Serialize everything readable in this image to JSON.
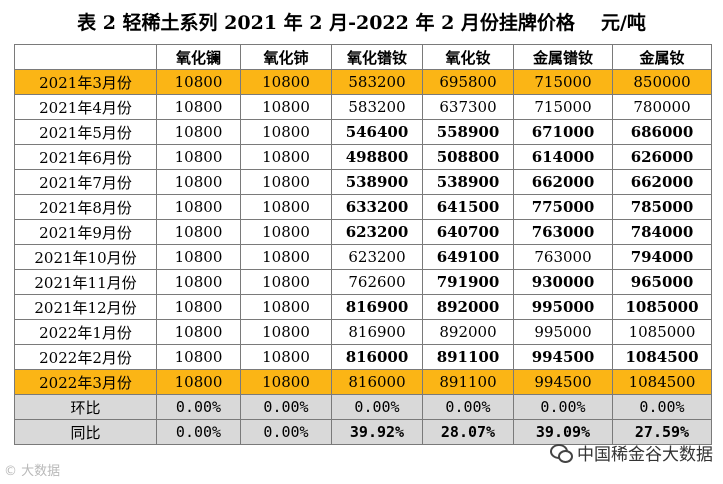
{
  "title": "表 2  轻稀土系列 2021 年 2 月-2022 年 2 月份挂牌价格",
  "unit": "元/吨",
  "headers": [
    "",
    "氧化镧",
    "氧化铈",
    "氧化镨钕",
    "氧化钕",
    "金属镨钕",
    "金属钕"
  ],
  "rows": [
    {
      "label": "2021年3月份",
      "values": [
        "10800",
        "10800",
        "583200",
        "695800",
        "715000",
        "850000"
      ]
    },
    {
      "label": "2021年4月份",
      "values": [
        "10800",
        "10800",
        "583200",
        "637300",
        "715000",
        "780000"
      ]
    },
    {
      "label": "2021年5月份",
      "values": [
        "10800",
        "10800",
        "546400",
        "558900",
        "671000",
        "686000"
      ]
    },
    {
      "label": "2021年6月份",
      "values": [
        "10800",
        "10800",
        "498800",
        "508800",
        "614000",
        "626000"
      ]
    },
    {
      "label": "2021年7月份",
      "values": [
        "10800",
        "10800",
        "538900",
        "538900",
        "662000",
        "662000"
      ]
    },
    {
      "label": "2021年8月份",
      "values": [
        "10800",
        "10800",
        "633200",
        "641500",
        "775000",
        "785000"
      ]
    },
    {
      "label": "2021年9月份",
      "values": [
        "10800",
        "10800",
        "623200",
        "640700",
        "763000",
        "784000"
      ]
    },
    {
      "label": "2021年10月份",
      "values": [
        "10800",
        "10800",
        "623200",
        "649100",
        "763000",
        "794000"
      ]
    },
    {
      "label": "2021年11月份",
      "values": [
        "10800",
        "10800",
        "762600",
        "791900",
        "930000",
        "965000"
      ]
    },
    {
      "label": "2021年12月份",
      "values": [
        "10800",
        "10800",
        "816900",
        "892000",
        "995000",
        "1085000"
      ]
    },
    {
      "label": "2022年1月份",
      "values": [
        "10800",
        "10800",
        "816900",
        "892000",
        "995000",
        "1085000"
      ]
    },
    {
      "label": "2022年2月份",
      "values": [
        "10800",
        "10800",
        "816000",
        "891100",
        "994500",
        "1084500"
      ]
    },
    {
      "label": "2022年3月份",
      "values": [
        "10800",
        "10800",
        "816000",
        "891100",
        "994500",
        "1084500"
      ]
    }
  ],
  "mom": {
    "label": "环比",
    "values": [
      "0.00%",
      "0.00%",
      "0.00%",
      "0.00%",
      "0.00%",
      "0.00%"
    ]
  },
  "yoy": {
    "label": "同比",
    "values": [
      "0.00%",
      "0.00%",
      "39.92%",
      "28.07%",
      "39.09%",
      "27.59%"
    ]
  },
  "watermark_left": "© 大数据",
  "watermark_right": "中国稀金谷大数据",
  "colors": {
    "highlight": "#fbb515",
    "gray_row": "#d9d9d9",
    "up": "#e61e1e",
    "down": "#1fa33a"
  }
}
